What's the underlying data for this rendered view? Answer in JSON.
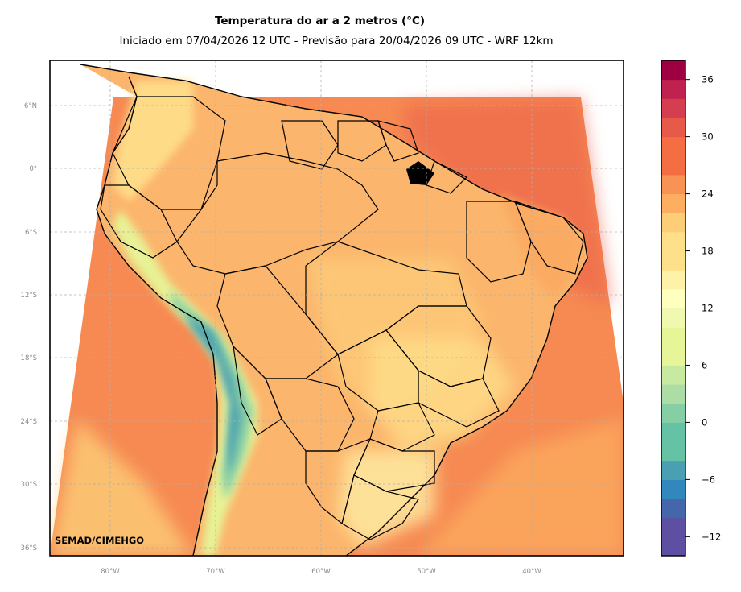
{
  "title": "Temperatura do ar a 2 metros (°C)",
  "subtitle": "Iniciado em 07/04/2026 12 UTC - Previsão para 20/04/2026 09 UTC - WRF 12km",
  "credit": "SEMAD/CIMEHGO",
  "lat_ticks": [
    "6°N",
    "0°",
    "6°S",
    "12°S",
    "18°S",
    "24°S",
    "30°S",
    "36°S"
  ],
  "lon_ticks": [
    "80°W",
    "70°W",
    "60°W",
    "50°W",
    "40°W"
  ],
  "colorbar": {
    "min": -14,
    "max": 38,
    "step": 2,
    "tick_labels": [
      "36",
      "30",
      "24",
      "18",
      "12",
      "6",
      "0",
      "−6",
      "−12"
    ],
    "tick_values": [
      36,
      30,
      24,
      18,
      12,
      6,
      0,
      -6,
      -12
    ],
    "colors": [
      "#5e4fa2",
      "#4466ab",
      "#3288bd",
      "#4aa0b2",
      "#66c2a5",
      "#86cfa5",
      "#abdda4",
      "#c7e9a0",
      "#e6f598",
      "#f1f9b0",
      "#ffffbf",
      "#fff1a8",
      "#fee08b",
      "#fdcd78",
      "#fdae61",
      "#f99355",
      "#f46d43",
      "#e75948",
      "#d53e4f",
      "#c0214e",
      "#9e0142"
    ]
  },
  "map": {
    "extent": {
      "lon_min": -86,
      "lon_max": -31.5,
      "lat_min": -36.8,
      "lat_max": 10.4
    },
    "ocean_color": "#f07a48",
    "land_base_color": "#fbb56c",
    "andes_cold_color": "#4aa0b2",
    "highland_color": "#fff1a8"
  }
}
